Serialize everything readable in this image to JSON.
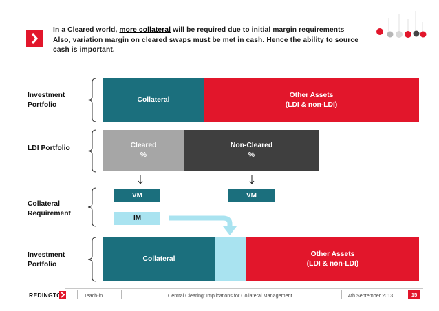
{
  "header": {
    "line1_pre": "In a Cleared world, ",
    "line1_highlight": "more collateral",
    "line1_post": " will be required due to initial margin requirements",
    "line2": "Also, variation margin on cleared swaps must be met in cash. Hence the ability to source",
    "line3": "cash is important."
  },
  "rows": {
    "investment_top": {
      "label": "Investment Portfolio",
      "collateral": "Collateral",
      "other_assets": "Other Assets",
      "other_assets_sub": "(LDI & non-LDI)"
    },
    "ldi": {
      "label": "LDI Portfolio",
      "cleared": "Cleared",
      "cleared_unit": "%",
      "non_cleared": "Non-Cleared",
      "non_cleared_unit": "%"
    },
    "collateral_req": {
      "label": "Collateral Requirement",
      "vm_left": "VM",
      "vm_right": "VM",
      "im": "IM"
    },
    "investment_bottom": {
      "label": "Investment Portfolio",
      "collateral": "Collateral",
      "other_assets": "Other Assets",
      "other_assets_sub": "(LDI & non-LDI)"
    }
  },
  "footer": {
    "brand": "REDINGTON",
    "section": "Teach-in",
    "title": "Central Clearing: Implications for Collateral Management",
    "date": "4th September 2013",
    "page": "15"
  },
  "colors": {
    "accent_red": "#e2162b",
    "teal": "#1b6f7d",
    "light_blue": "#a9e3f0",
    "grey": "#a6a6a6",
    "dark_grey": "#3f3f3f"
  },
  "icons": {
    "header": "chevron-right-icon",
    "logo": "redington-circles-logo",
    "arrows": "arrow-down-icon",
    "flow": "curved-arrow-icon"
  }
}
